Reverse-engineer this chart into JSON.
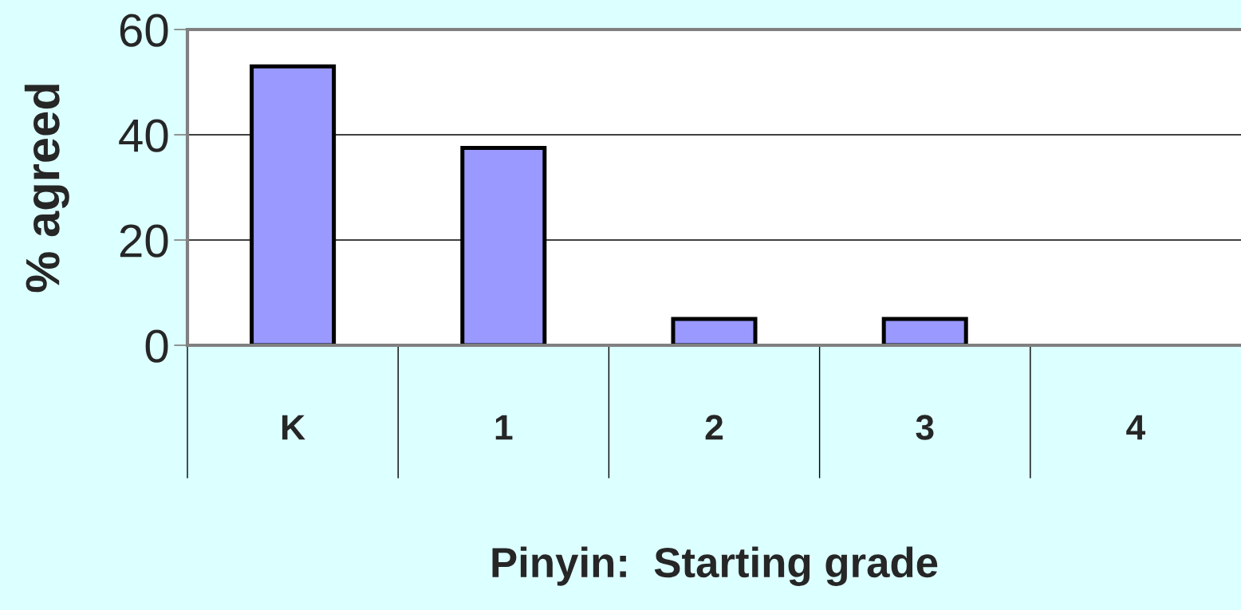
{
  "chart_data": {
    "type": "bar",
    "xlabel": "Pinyin:  Starting grade",
    "ylabel": "% agreed",
    "categories": [
      "K",
      "1",
      "2",
      "3",
      "4"
    ],
    "values": [
      53,
      37.5,
      5,
      5,
      0
    ],
    "color": "#9999ff",
    "ylim": [
      0,
      60
    ],
    "yticks": [
      0,
      20,
      40,
      60
    ],
    "grid": "y"
  }
}
